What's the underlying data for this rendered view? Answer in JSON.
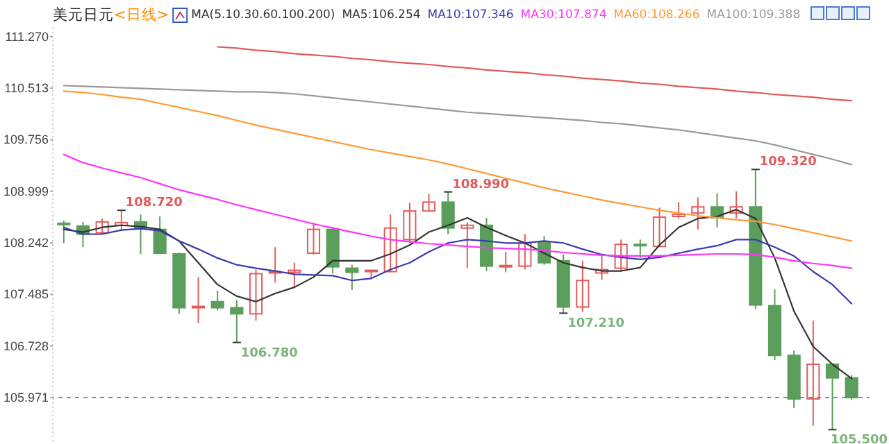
{
  "chart_data": {
    "type": "candlestick",
    "title": "美元日元",
    "subtitle": "<日线>",
    "annotations": [
      "MA(5.10.30.60.100.200)",
      "108.720",
      "106.780",
      "108.990",
      "107.210",
      "109.320",
      "105.500"
    ],
    "categories": [
      null,
      null,
      null,
      null,
      null,
      null,
      null,
      null,
      null,
      null,
      null,
      null,
      null,
      null,
      null,
      null,
      null,
      null,
      null,
      null,
      null,
      null,
      null,
      null,
      null,
      null,
      null,
      null,
      null,
      null,
      null,
      null,
      null,
      null,
      null,
      null,
      null,
      null,
      null,
      null,
      null,
      null
    ],
    "ohlc": [
      [
        108.53,
        108.57,
        108.24,
        108.51
      ],
      [
        108.49,
        108.55,
        108.18,
        108.37
      ],
      [
        108.39,
        108.6,
        108.37,
        108.55
      ],
      [
        108.5,
        108.72,
        108.42,
        108.54
      ],
      [
        108.55,
        108.66,
        108.08,
        108.46
      ],
      [
        108.44,
        108.63,
        108.08,
        108.09
      ],
      [
        108.08,
        108.1,
        107.2,
        107.29
      ],
      [
        107.29,
        107.74,
        107.06,
        107.31
      ],
      [
        107.38,
        107.54,
        107.25,
        107.29
      ],
      [
        107.29,
        107.4,
        106.78,
        107.2
      ],
      [
        107.2,
        107.85,
        107.1,
        107.79
      ],
      [
        107.8,
        108.18,
        107.66,
        107.82
      ],
      [
        107.81,
        107.95,
        107.59,
        107.84
      ],
      [
        108.09,
        108.54,
        108.07,
        108.44
      ],
      [
        108.44,
        108.47,
        107.79,
        107.89
      ],
      [
        107.87,
        107.92,
        107.55,
        107.81
      ],
      [
        107.82,
        107.85,
        107.72,
        107.84
      ],
      [
        107.82,
        108.66,
        107.81,
        108.46
      ],
      [
        108.29,
        108.83,
        108.24,
        108.71
      ],
      [
        108.71,
        108.96,
        108.7,
        108.84
      ],
      [
        108.84,
        108.99,
        108.37,
        108.46
      ],
      [
        108.46,
        108.54,
        107.87,
        108.5
      ],
      [
        108.5,
        108.61,
        107.83,
        107.9
      ],
      [
        107.89,
        108.11,
        107.81,
        107.91
      ],
      [
        107.9,
        108.37,
        107.85,
        108.24
      ],
      [
        108.25,
        108.34,
        107.92,
        107.95
      ],
      [
        107.98,
        108.07,
        107.21,
        107.3
      ],
      [
        107.3,
        107.98,
        107.23,
        107.69
      ],
      [
        107.8,
        108.07,
        107.7,
        107.85
      ],
      [
        107.87,
        108.29,
        107.82,
        108.22
      ],
      [
        108.22,
        108.29,
        108.02,
        108.2
      ],
      [
        108.19,
        108.76,
        108.18,
        108.62
      ],
      [
        108.63,
        108.84,
        108.6,
        108.66
      ],
      [
        108.68,
        108.91,
        108.44,
        108.77
      ],
      [
        108.77,
        108.97,
        108.47,
        108.61
      ],
      [
        108.68,
        109.0,
        108.6,
        108.77
      ],
      [
        108.77,
        109.32,
        107.27,
        107.33
      ],
      [
        107.32,
        107.56,
        106.52,
        106.59
      ],
      [
        106.59,
        106.66,
        105.82,
        105.95
      ],
      [
        105.95,
        107.1,
        105.56,
        106.46
      ],
      [
        106.46,
        106.46,
        105.5,
        106.26
      ],
      [
        106.26,
        106.3,
        105.94,
        105.97
      ]
    ],
    "series": [
      {
        "type": "line",
        "name": "MA5:106.254",
        "color": "#333333",
        "values": [
          108.44,
          108.4,
          108.47,
          108.5,
          108.48,
          108.44,
          108.27,
          107.95,
          107.63,
          107.46,
          107.38,
          107.5,
          107.59,
          107.74,
          107.98,
          107.98,
          107.98,
          108.08,
          108.21,
          108.4,
          108.5,
          108.61,
          108.47,
          108.35,
          108.24,
          108.09,
          107.95,
          107.88,
          107.83,
          107.83,
          107.88,
          108.21,
          108.47,
          108.6,
          108.63,
          108.73,
          108.6,
          108.02,
          107.24,
          106.72,
          106.46,
          106.25
        ]
      },
      {
        "type": "line",
        "name": "MA10:107.346",
        "color": "#3b3bb0",
        "values": [
          108.47,
          108.37,
          108.37,
          108.43,
          108.45,
          108.42,
          108.27,
          108.15,
          108.02,
          107.92,
          107.87,
          107.83,
          107.78,
          107.77,
          107.76,
          107.69,
          107.72,
          107.85,
          107.95,
          108.11,
          108.24,
          108.29,
          108.27,
          108.24,
          108.24,
          108.27,
          108.24,
          108.15,
          108.07,
          108.03,
          108.0,
          108.03,
          108.09,
          108.15,
          108.2,
          108.29,
          108.29,
          108.18,
          108.05,
          107.82,
          107.63,
          107.35
        ]
      },
      {
        "type": "line",
        "name": "MA30:107.874",
        "color": "#ff33ff",
        "values": [
          109.54,
          109.42,
          109.34,
          109.27,
          109.2,
          109.11,
          109.02,
          108.95,
          108.88,
          108.8,
          108.73,
          108.66,
          108.59,
          108.52,
          108.46,
          108.4,
          108.34,
          108.29,
          108.26,
          108.23,
          108.21,
          108.19,
          108.17,
          108.16,
          108.15,
          108.13,
          108.1,
          108.08,
          108.06,
          108.05,
          108.05,
          108.05,
          108.06,
          108.07,
          108.08,
          108.08,
          108.07,
          108.03,
          107.98,
          107.94,
          107.91,
          107.87
        ]
      },
      {
        "type": "line",
        "name": "MA60:108.266",
        "color": "#ff9933",
        "values": [
          110.47,
          110.45,
          110.42,
          110.38,
          110.35,
          110.29,
          110.23,
          110.17,
          110.11,
          110.04,
          109.97,
          109.91,
          109.85,
          109.79,
          109.73,
          109.67,
          109.61,
          109.56,
          109.51,
          109.46,
          109.4,
          109.33,
          109.26,
          109.19,
          109.12,
          109.05,
          108.99,
          108.93,
          108.87,
          108.82,
          108.77,
          108.72,
          108.68,
          108.64,
          108.61,
          108.58,
          108.56,
          108.51,
          108.45,
          108.39,
          108.33,
          108.27
        ]
      },
      {
        "type": "line",
        "name": "MA100:109.388",
        "color": "#999999",
        "values": [
          110.55,
          110.54,
          110.53,
          110.52,
          110.51,
          110.5,
          110.49,
          110.48,
          110.47,
          110.46,
          110.46,
          110.45,
          110.43,
          110.4,
          110.37,
          110.34,
          110.31,
          110.28,
          110.25,
          110.22,
          110.19,
          110.16,
          110.14,
          110.12,
          110.1,
          110.08,
          110.06,
          110.04,
          110.01,
          109.99,
          109.96,
          109.93,
          109.9,
          109.86,
          109.82,
          109.78,
          109.74,
          109.68,
          109.61,
          109.54,
          109.47,
          109.39
        ]
      },
      {
        "type": "line",
        "color": "#e05a5a",
        "values": [
          null,
          null,
          null,
          null,
          null,
          null,
          null,
          null,
          111.12,
          111.1,
          111.07,
          111.05,
          111.02,
          111.0,
          110.98,
          110.95,
          110.93,
          110.9,
          110.88,
          110.86,
          110.83,
          110.81,
          110.78,
          110.76,
          110.74,
          110.71,
          110.69,
          110.66,
          110.64,
          110.62,
          110.59,
          110.57,
          110.54,
          110.52,
          110.5,
          110.47,
          110.45,
          110.42,
          110.4,
          110.38,
          110.35,
          110.33
        ]
      }
    ],
    "ylim": [
      105.33,
      111.4
    ],
    "yticks": [
      {
        "value": 111.27,
        "label": "111.270"
      },
      {
        "value": 110.513,
        "label": "110.513"
      },
      {
        "value": 109.756,
        "label": "109.756"
      },
      {
        "value": 108.999,
        "label": "108.999"
      },
      {
        "value": 108.242,
        "label": "108.242"
      },
      {
        "value": 107.485,
        "label": "107.485"
      },
      {
        "value": 106.728,
        "label": "106.728"
      },
      {
        "value": 105.971,
        "label": "105.971"
      }
    ],
    "ref_lines": [
      {
        "axis": "y",
        "value": 105.971,
        "color": "#3399ff",
        "line_style": "dashed"
      }
    ],
    "legend": "top",
    "tick_labels": "y"
  }
}
